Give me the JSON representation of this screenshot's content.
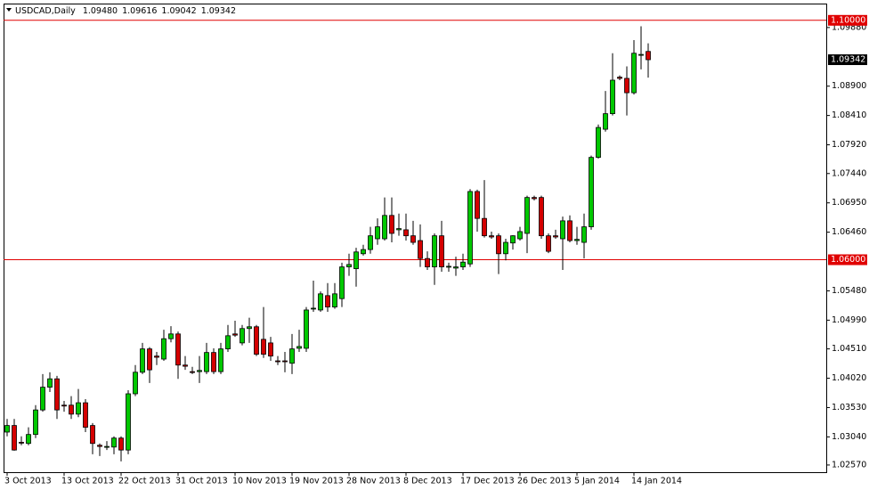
{
  "chart_data": {
    "type": "candlestick",
    "title": "USDCAD,Daily",
    "title_values": [
      "1.09480",
      "1.09616",
      "1.09042",
      "1.09342"
    ],
    "categories": [
      "3 Oct 2013",
      null,
      null,
      null,
      null,
      null,
      null,
      null,
      "13 Oct 2013",
      null,
      null,
      null,
      null,
      null,
      null,
      null,
      "22 Oct 2013",
      null,
      null,
      null,
      null,
      null,
      null,
      null,
      "31 Oct 2013",
      null,
      null,
      null,
      null,
      null,
      null,
      null,
      "10 Nov 2013",
      null,
      null,
      null,
      null,
      null,
      null,
      null,
      "19 Nov 2013",
      null,
      null,
      null,
      null,
      null,
      null,
      null,
      "28 Nov 2013",
      null,
      null,
      null,
      null,
      null,
      null,
      null,
      "8 Dec 2013",
      null,
      null,
      null,
      null,
      null,
      null,
      null,
      "17 Dec 2013",
      null,
      null,
      null,
      null,
      null,
      null,
      null,
      "26 Dec 2013",
      null,
      null,
      null,
      null,
      null,
      null,
      null,
      "5 Jan 2014",
      null,
      null,
      null,
      null,
      null,
      null,
      null,
      "14 Jan 2014",
      null,
      null
    ],
    "open": [
      1.0312,
      1.0323,
      1.0295,
      1.0293,
      1.0308,
      1.0349,
      1.0387,
      1.0401,
      1.0357,
      1.0357,
      1.0342,
      1.0361,
      1.0323,
      1.029,
      1.0287,
      1.0287,
      1.0302,
      1.0282,
      1.0376,
      1.0412,
      1.0451,
      1.0439,
      1.0434,
      1.0468,
      1.0476,
      1.0424,
      1.0413,
      1.0413,
      1.0413,
      1.0445,
      1.0413,
      1.0451,
      1.0476,
      1.0461,
      1.0485,
      1.0488,
      1.0467,
      1.0461,
      1.0431,
      1.0431,
      1.0427,
      1.0452,
      1.0452,
      1.0518,
      1.0516,
      1.054,
      1.0521,
      1.0535,
      1.0588,
      1.0585,
      1.061,
      1.0617,
      1.0635,
      1.0635,
      1.0674,
      1.065,
      1.065,
      1.064,
      1.0632,
      1.0602,
      1.0588,
      1.064,
      1.0588,
      1.0586,
      1.0588,
      1.0593,
      1.0714,
      1.0669,
      1.064,
      1.064,
      1.061,
      1.0628,
      1.0635,
      1.0644,
      1.0704,
      1.0704,
      1.064,
      1.064,
      1.0635,
      1.0665,
      1.0632,
      1.0629,
      1.0655,
      1.0771,
      1.0818,
      1.0844,
      1.0905,
      1.0903,
      1.0879,
      1.0942,
      1.0948
    ],
    "high": [
      1.0334,
      1.0334,
      1.0305,
      1.032,
      1.0357,
      1.0409,
      1.0412,
      1.0406,
      1.0364,
      1.0372,
      1.0384,
      1.0367,
      1.0327,
      1.0293,
      1.0297,
      1.0305,
      1.0305,
      1.0382,
      1.0424,
      1.0461,
      1.0454,
      1.0446,
      1.0483,
      1.0489,
      1.048,
      1.0439,
      1.0421,
      1.0439,
      1.0461,
      1.0452,
      1.0461,
      1.0491,
      1.0498,
      1.0491,
      1.0503,
      1.0491,
      1.0521,
      1.0471,
      1.0439,
      1.0446,
      1.0476,
      1.0483,
      1.0521,
      1.0565,
      1.0547,
      1.0561,
      1.0561,
      1.0595,
      1.061,
      1.062,
      1.0625,
      1.0655,
      1.0669,
      1.0704,
      1.0704,
      1.0677,
      1.0677,
      1.0665,
      1.0659,
      1.0614,
      1.0644,
      1.0665,
      1.0595,
      1.0605,
      1.061,
      1.0718,
      1.0717,
      1.0733,
      1.0647,
      1.0644,
      1.0635,
      1.0641,
      1.0655,
      1.0707,
      1.0707,
      1.0707,
      1.0644,
      1.065,
      1.0672,
      1.0674,
      1.0655,
      1.0677,
      1.0774,
      1.0826,
      1.0882,
      1.0945,
      1.0908,
      1.0923,
      1.0967,
      1.099,
      1.09616
    ],
    "low": [
      1.0305,
      1.0281,
      1.029,
      1.029,
      1.0302,
      1.0346,
      1.0379,
      1.0334,
      1.0346,
      1.0334,
      1.0337,
      1.0312,
      1.0275,
      1.0272,
      1.0282,
      1.0275,
      1.0263,
      1.0275,
      1.0372,
      1.0409,
      1.0394,
      1.0424,
      1.0431,
      1.0462,
      1.0401,
      1.0416,
      1.0409,
      1.0394,
      1.0409,
      1.0409,
      1.0409,
      1.0446,
      1.0471,
      1.0457,
      1.0461,
      1.0439,
      1.0436,
      1.0431,
      1.0424,
      1.0412,
      1.0409,
      1.0446,
      1.0446,
      1.0513,
      1.0513,
      1.0513,
      1.0518,
      1.0521,
      1.0573,
      1.0555,
      1.0607,
      1.061,
      1.0625,
      1.0632,
      1.0629,
      1.064,
      1.0632,
      1.0625,
      1.0588,
      1.0583,
      1.0558,
      1.058,
      1.058,
      1.0573,
      1.0583,
      1.0588,
      1.0647,
      1.0637,
      1.0635,
      1.0576,
      1.0599,
      1.0617,
      1.0632,
      1.0611,
      1.0699,
      1.0635,
      1.0611,
      1.0635,
      1.0583,
      1.0629,
      1.0625,
      1.0602,
      1.065,
      1.0769,
      1.0814,
      1.0841,
      1.09,
      1.0841,
      1.0876,
      1.0918,
      1.09042
    ],
    "close": [
      1.0323,
      1.0282,
      1.0294,
      1.0308,
      1.0349,
      1.0387,
      1.0401,
      1.0349,
      1.0356,
      1.0342,
      1.0361,
      1.032,
      1.0293,
      1.0288,
      1.0288,
      1.0302,
      1.0282,
      1.0376,
      1.0412,
      1.0451,
      1.0416,
      1.0437,
      1.0468,
      1.0476,
      1.0424,
      1.0422,
      1.0412,
      1.0415,
      1.0445,
      1.0413,
      1.0451,
      1.0473,
      1.0474,
      1.0485,
      1.0488,
      1.0442,
      1.0442,
      1.0439,
      1.043,
      1.043,
      1.0451,
      1.0455,
      1.0516,
      1.0519,
      1.0543,
      1.0521,
      1.0543,
      1.0588,
      1.0592,
      1.0613,
      1.0617,
      1.064,
      1.0655,
      1.0674,
      1.0644,
      1.0652,
      1.064,
      1.0629,
      1.0602,
      1.0588,
      1.064,
      1.0588,
      1.0589,
      1.0588,
      1.0596,
      1.0714,
      1.0669,
      1.064,
      1.0638,
      1.061,
      1.0629,
      1.064,
      1.0647,
      1.0704,
      1.0702,
      1.064,
      1.0614,
      1.0638,
      1.0665,
      1.0632,
      1.0634,
      1.0655,
      1.0771,
      1.0821,
      1.0844,
      1.09,
      1.0903,
      1.0879,
      1.0945,
      1.0943,
      1.09342
    ],
    "up_color": "#00c800",
    "down_color": "#d40000",
    "ylim": [
      1.0245,
      1.1028
    ],
    "yticks": [
      {
        "value": 1.0988,
        "label": "1.09880"
      },
      {
        "value": 1.089,
        "label": "1.08900"
      },
      {
        "value": 1.0841,
        "label": "1.08410"
      },
      {
        "value": 1.0792,
        "label": "1.07920"
      },
      {
        "value": 1.0744,
        "label": "1.07440"
      },
      {
        "value": 1.0695,
        "label": "1.06950"
      },
      {
        "value": 1.0646,
        "label": "1.06460"
      },
      {
        "value": 1.0548,
        "label": "1.05480"
      },
      {
        "value": 1.0499,
        "label": "1.04990"
      },
      {
        "value": 1.0451,
        "label": "1.04510"
      },
      {
        "value": 1.0402,
        "label": "1.04020"
      },
      {
        "value": 1.0353,
        "label": "1.03530"
      },
      {
        "value": 1.0304,
        "label": "1.03040"
      },
      {
        "value": 1.0257,
        "label": "1.02570"
      }
    ],
    "hlines": [
      {
        "value": 1.1,
        "label": "1.10000",
        "color": "#e00000"
      },
      {
        "value": 1.06,
        "label": "1.06000",
        "color": "#e00000"
      }
    ],
    "last_price": {
      "value": 1.09342,
      "label": "1.09342",
      "color": "#000000"
    },
    "grid": false
  }
}
